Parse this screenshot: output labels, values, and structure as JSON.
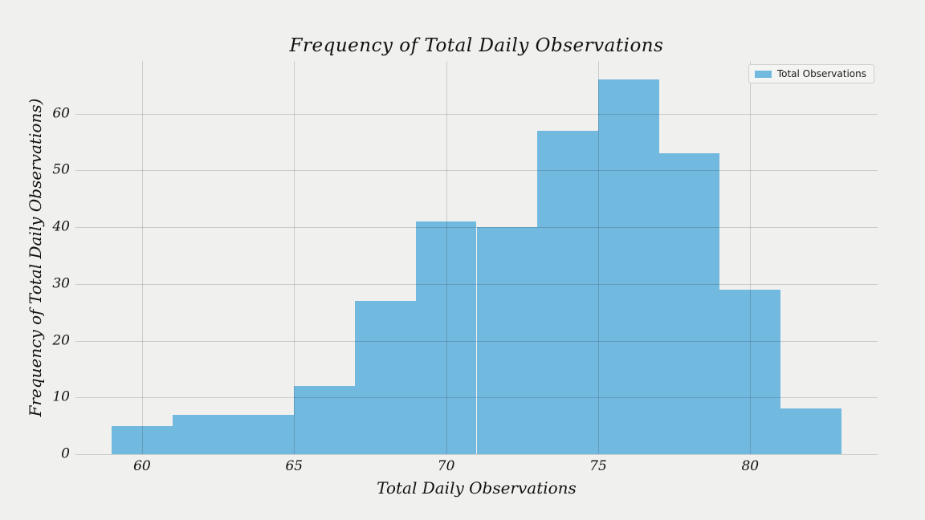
{
  "title": "Frequency of Total Daily Observations",
  "colors": {
    "figure_bg": "#f0f0ef",
    "bar": "#72b9df",
    "gridline": "rgba(0,0,0,0.15)",
    "text": "#111111",
    "legend_bg": "#f4f4f3",
    "legend_border": "#cfcfcf"
  },
  "legend": {
    "items": [
      {
        "label": "Total Observations",
        "color": "#72b9df"
      }
    ]
  },
  "chart_data": {
    "type": "bar",
    "subtype": "histogram",
    "title": "Frequency of Total Daily Observations",
    "xlabel": "Total Daily Observations",
    "ylabel": "Frequency of Total Daily Observations)",
    "legend_label": "Total Observations",
    "legend_position": "upper right",
    "grid": true,
    "bin_edges": [
      59,
      61,
      63,
      65,
      67,
      69,
      71,
      73,
      75,
      77,
      79,
      81,
      83
    ],
    "values": [
      5,
      7,
      7,
      12,
      27,
      41,
      40,
      57,
      66,
      53,
      29,
      8
    ],
    "xlim": [
      57.81,
      84.19
    ],
    "ylim": [
      0,
      69.3
    ],
    "xticks": [
      {
        "v": 60,
        "label": "60"
      },
      {
        "v": 65,
        "label": "65"
      },
      {
        "v": 70,
        "label": "70"
      },
      {
        "v": 75,
        "label": "75"
      },
      {
        "v": 80,
        "label": "80"
      }
    ],
    "yticks": [
      {
        "v": 0,
        "label": "0"
      },
      {
        "v": 10,
        "label": "10"
      },
      {
        "v": 20,
        "label": "20"
      },
      {
        "v": 30,
        "label": "30"
      },
      {
        "v": 40,
        "label": "40"
      },
      {
        "v": 50,
        "label": "50"
      },
      {
        "v": 60,
        "label": "60"
      }
    ]
  }
}
